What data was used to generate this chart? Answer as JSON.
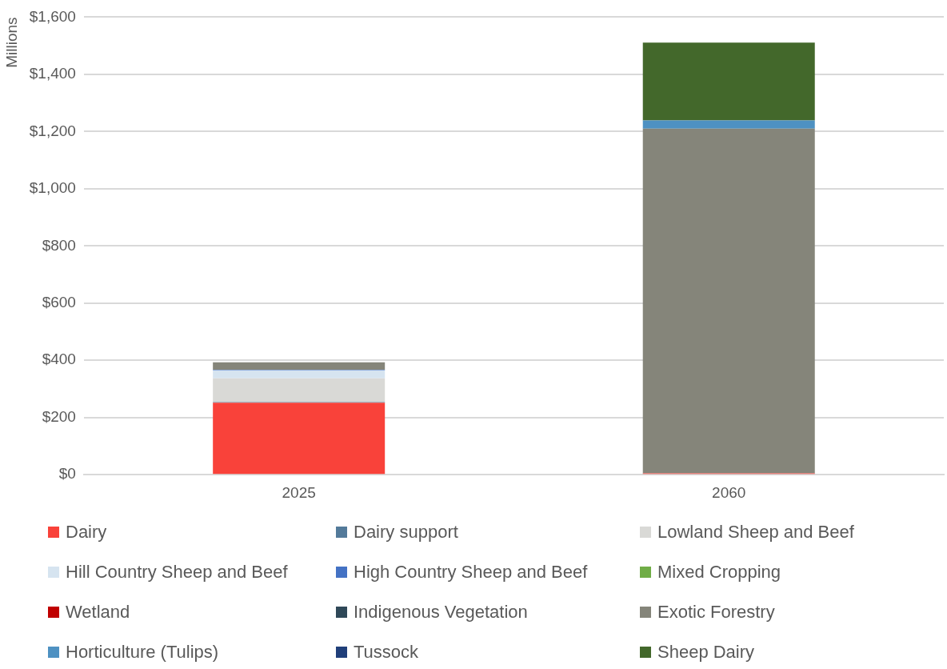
{
  "chart_data": {
    "type": "bar",
    "stacked": true,
    "ylabel": "Millions",
    "categories": [
      "2025",
      "2060"
    ],
    "series": [
      {
        "name": "Dairy",
        "color": "#f9423a",
        "values": [
          252,
          5
        ]
      },
      {
        "name": "Dairy support",
        "color": "#537a9a",
        "values": [
          2,
          0
        ]
      },
      {
        "name": "Lowland Sheep and Beef",
        "color": "#d9d9d6",
        "values": [
          83,
          0
        ]
      },
      {
        "name": "Hill Country Sheep and Beef",
        "color": "#d6e4f0",
        "values": [
          28,
          0
        ]
      },
      {
        "name": "High Country Sheep and Beef",
        "color": "#4472c4",
        "values": [
          2,
          0
        ]
      },
      {
        "name": "Mixed Cropping",
        "color": "#70ad47",
        "values": [
          0,
          0
        ]
      },
      {
        "name": "Wetland",
        "color": "#c00000",
        "values": [
          0,
          0
        ]
      },
      {
        "name": "Indigenous Vegetation",
        "color": "#2f4858",
        "values": [
          0,
          0
        ]
      },
      {
        "name": "Exotic Forestry",
        "color": "#85857a",
        "values": [
          26,
          1205
        ]
      },
      {
        "name": "Horticulture (Tulips)",
        "color": "#4e91c2",
        "values": [
          0,
          29
        ]
      },
      {
        "name": "Tussock",
        "color": "#203f7a",
        "values": [
          0,
          0
        ]
      },
      {
        "name": "Sheep Dairy",
        "color": "#43682b",
        "values": [
          0,
          272
        ]
      }
    ],
    "ylim": [
      0,
      1600
    ],
    "yticks": [
      {
        "value": 0,
        "label": "$0"
      },
      {
        "value": 200,
        "label": "$200"
      },
      {
        "value": 400,
        "label": "$400"
      },
      {
        "value": 600,
        "label": "$600"
      },
      {
        "value": 800,
        "label": "$800"
      },
      {
        "value": 1000,
        "label": "$1,000"
      },
      {
        "value": 1200,
        "label": "$1,200"
      },
      {
        "value": 1400,
        "label": "$1,400"
      },
      {
        "value": 1600,
        "label": "$1,600"
      }
    ],
    "grid": "y",
    "legend": "bottom"
  }
}
